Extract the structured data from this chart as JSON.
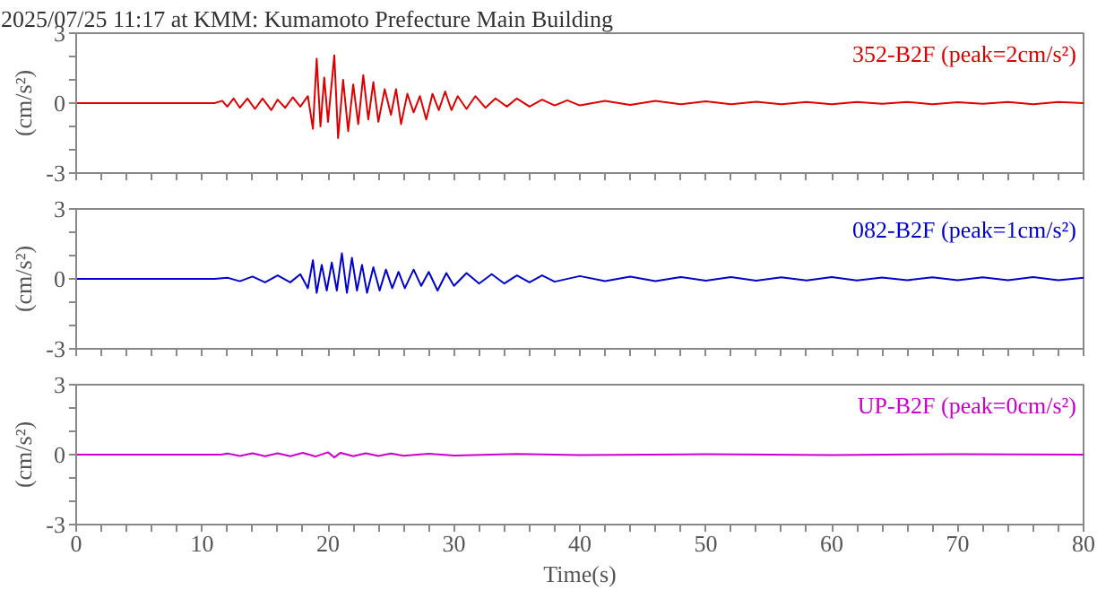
{
  "chart_data": [
    {
      "type": "line",
      "title": "2025/07/25 11:17 at KMM: Kumamoto Prefecture Main Building",
      "ylabel": "(cm/s²)",
      "xlim": [
        0,
        80
      ],
      "ylim": [
        -3,
        3
      ],
      "tick_labels": "y",
      "legend": "top right",
      "xticks": [
        0,
        {
          "value": 2,
          "label": null
        },
        {
          "value": 4,
          "label": null
        },
        {
          "value": 6,
          "label": null
        },
        {
          "value": 8,
          "label": null
        },
        10,
        {
          "value": 12,
          "label": null
        },
        {
          "value": 14,
          "label": null
        },
        {
          "value": 16,
          "label": null
        },
        {
          "value": 18,
          "label": null
        },
        20,
        {
          "value": 22,
          "label": null
        },
        {
          "value": 24,
          "label": null
        },
        {
          "value": 26,
          "label": null
        },
        {
          "value": 28,
          "label": null
        },
        30,
        {
          "value": 32,
          "label": null
        },
        {
          "value": 34,
          "label": null
        },
        {
          "value": 36,
          "label": null
        },
        {
          "value": 38,
          "label": null
        },
        40,
        {
          "value": 42,
          "label": null
        },
        {
          "value": 44,
          "label": null
        },
        {
          "value": 46,
          "label": null
        },
        {
          "value": 48,
          "label": null
        },
        50,
        {
          "value": 52,
          "label": null
        },
        {
          "value": 54,
          "label": null
        },
        {
          "value": 56,
          "label": null
        },
        {
          "value": 58,
          "label": null
        },
        60,
        {
          "value": 62,
          "label": null
        },
        {
          "value": 64,
          "label": null
        },
        {
          "value": 66,
          "label": null
        },
        {
          "value": 68,
          "label": null
        },
        70,
        {
          "value": 72,
          "label": null
        },
        {
          "value": 74,
          "label": null
        },
        {
          "value": 76,
          "label": null
        },
        {
          "value": 78,
          "label": null
        },
        80
      ],
      "yticks": [
        -3,
        {
          "value": -2,
          "label": null
        },
        {
          "value": -1,
          "label": null
        },
        0,
        {
          "value": 1,
          "label": null
        },
        {
          "value": 2,
          "label": null
        },
        3
      ],
      "series": [
        {
          "name": "352-B2F (peak=2cm/s²)",
          "color": "#dd0000",
          "x": [
            0,
            11,
            11.6,
            12,
            12.5,
            13,
            13.6,
            14.2,
            14.8,
            15.5,
            16,
            16.6,
            17.2,
            17.8,
            18.4,
            18.8,
            19.1,
            19.4,
            19.7,
            20.0,
            20.5,
            20.8,
            21.2,
            21.6,
            22.0,
            22.4,
            22.8,
            23.2,
            23.6,
            24.0,
            24.5,
            25,
            25.4,
            25.8,
            26.3,
            26.8,
            27.3,
            27.8,
            28.3,
            28.8,
            29.3,
            29.8,
            30.3,
            31,
            31.7,
            32.5,
            33.3,
            34.2,
            35,
            36,
            37,
            38,
            39,
            40,
            42,
            44,
            46,
            48,
            50,
            52,
            54,
            56,
            58,
            60,
            62,
            64,
            66,
            68,
            70,
            72,
            74,
            76,
            78,
            80
          ],
          "values": [
            0,
            0,
            0.1,
            -0.15,
            0.2,
            -0.2,
            0.2,
            -0.25,
            0.2,
            -0.3,
            0.15,
            -0.2,
            0.25,
            -0.15,
            0.3,
            -1.1,
            1.9,
            -1.0,
            1.1,
            -0.8,
            2.05,
            -1.5,
            1.0,
            -1.2,
            0.8,
            -0.9,
            1.2,
            -0.7,
            0.9,
            -0.8,
            0.6,
            -0.5,
            0.6,
            -0.9,
            0.4,
            -0.4,
            0.3,
            -0.7,
            0.4,
            -0.3,
            0.5,
            -0.3,
            0.3,
            -0.25,
            0.3,
            -0.2,
            0.2,
            -0.15,
            0.2,
            -0.15,
            0.15,
            -0.1,
            0.12,
            -0.1,
            0.1,
            -0.08,
            0.1,
            -0.05,
            0.08,
            -0.05,
            0.06,
            -0.05,
            0.05,
            -0.05,
            0.05,
            -0.03,
            0.05,
            -0.05,
            0.04,
            -0.03,
            0.05,
            -0.05,
            0.05,
            0
          ]
        }
      ]
    },
    {
      "type": "line",
      "ylabel": "(cm/s²)",
      "xlim": [
        0,
        80
      ],
      "ylim": [
        -3,
        3
      ],
      "tick_labels": "y",
      "legend": "top right",
      "xticks": [
        0,
        {
          "value": 2,
          "label": null
        },
        {
          "value": 4,
          "label": null
        },
        {
          "value": 6,
          "label": null
        },
        {
          "value": 8,
          "label": null
        },
        10,
        {
          "value": 12,
          "label": null
        },
        {
          "value": 14,
          "label": null
        },
        {
          "value": 16,
          "label": null
        },
        {
          "value": 18,
          "label": null
        },
        20,
        {
          "value": 22,
          "label": null
        },
        {
          "value": 24,
          "label": null
        },
        {
          "value": 26,
          "label": null
        },
        {
          "value": 28,
          "label": null
        },
        30,
        {
          "value": 32,
          "label": null
        },
        {
          "value": 34,
          "label": null
        },
        {
          "value": 36,
          "label": null
        },
        {
          "value": 38,
          "label": null
        },
        40,
        {
          "value": 42,
          "label": null
        },
        {
          "value": 44,
          "label": null
        },
        {
          "value": 46,
          "label": null
        },
        {
          "value": 48,
          "label": null
        },
        50,
        {
          "value": 52,
          "label": null
        },
        {
          "value": 54,
          "label": null
        },
        {
          "value": 56,
          "label": null
        },
        {
          "value": 58,
          "label": null
        },
        60,
        {
          "value": 62,
          "label": null
        },
        {
          "value": 64,
          "label": null
        },
        {
          "value": 66,
          "label": null
        },
        {
          "value": 68,
          "label": null
        },
        70,
        {
          "value": 72,
          "label": null
        },
        {
          "value": 74,
          "label": null
        },
        {
          "value": 76,
          "label": null
        },
        {
          "value": 78,
          "label": null
        },
        80
      ],
      "yticks": [
        -3,
        {
          "value": -2,
          "label": null
        },
        {
          "value": -1,
          "label": null
        },
        0,
        {
          "value": 1,
          "label": null
        },
        {
          "value": 2,
          "label": null
        },
        3
      ],
      "series": [
        {
          "name": "082-B2F (peak=1cm/s²)",
          "color": "#0000cc",
          "x": [
            0,
            11,
            12,
            13,
            14,
            15,
            16,
            17,
            17.8,
            18.4,
            18.8,
            19.1,
            19.5,
            19.9,
            20.3,
            20.7,
            21.1,
            21.5,
            21.9,
            22.3,
            22.7,
            23.1,
            23.6,
            24.1,
            24.6,
            25.1,
            25.6,
            26.1,
            26.8,
            27.4,
            28,
            28.7,
            29.4,
            30,
            31,
            32,
            33,
            34,
            35,
            36,
            37,
            38,
            40,
            42,
            44,
            46,
            48,
            50,
            52,
            54,
            56,
            58,
            60,
            62,
            64,
            66,
            68,
            70,
            72,
            74,
            76,
            78,
            80
          ],
          "values": [
            0,
            0,
            0.05,
            -0.1,
            0.1,
            -0.15,
            0.15,
            -0.15,
            0.2,
            -0.4,
            0.8,
            -0.6,
            0.6,
            -0.5,
            0.7,
            -0.5,
            1.1,
            -0.6,
            0.9,
            -0.5,
            0.6,
            -0.6,
            0.5,
            -0.5,
            0.4,
            -0.4,
            0.3,
            -0.4,
            0.4,
            -0.3,
            0.3,
            -0.5,
            0.25,
            -0.3,
            0.25,
            -0.2,
            0.2,
            -0.2,
            0.15,
            -0.15,
            0.15,
            -0.12,
            0.12,
            -0.1,
            0.1,
            -0.1,
            0.08,
            -0.08,
            0.08,
            -0.08,
            0.07,
            -0.07,
            0.08,
            -0.07,
            0.06,
            -0.06,
            0.07,
            -0.06,
            0.07,
            -0.06,
            0.08,
            -0.06,
            0.05
          ]
        }
      ]
    },
    {
      "type": "line",
      "ylabel": "(cm/s²)",
      "xlabel": "Time(s)",
      "xlim": [
        0,
        80
      ],
      "ylim": [
        -3,
        3
      ],
      "legend": "top right",
      "xticks": [
        0,
        {
          "value": 2,
          "label": null
        },
        {
          "value": 4,
          "label": null
        },
        {
          "value": 6,
          "label": null
        },
        {
          "value": 8,
          "label": null
        },
        10,
        {
          "value": 12,
          "label": null
        },
        {
          "value": 14,
          "label": null
        },
        {
          "value": 16,
          "label": null
        },
        {
          "value": 18,
          "label": null
        },
        20,
        {
          "value": 22,
          "label": null
        },
        {
          "value": 24,
          "label": null
        },
        {
          "value": 26,
          "label": null
        },
        {
          "value": 28,
          "label": null
        },
        30,
        {
          "value": 32,
          "label": null
        },
        {
          "value": 34,
          "label": null
        },
        {
          "value": 36,
          "label": null
        },
        {
          "value": 38,
          "label": null
        },
        40,
        {
          "value": 42,
          "label": null
        },
        {
          "value": 44,
          "label": null
        },
        {
          "value": 46,
          "label": null
        },
        {
          "value": 48,
          "label": null
        },
        50,
        {
          "value": 52,
          "label": null
        },
        {
          "value": 54,
          "label": null
        },
        {
          "value": 56,
          "label": null
        },
        {
          "value": 58,
          "label": null
        },
        60,
        {
          "value": 62,
          "label": null
        },
        {
          "value": 64,
          "label": null
        },
        {
          "value": 66,
          "label": null
        },
        {
          "value": 68,
          "label": null
        },
        70,
        {
          "value": 72,
          "label": null
        },
        {
          "value": 74,
          "label": null
        },
        {
          "value": 76,
          "label": null
        },
        {
          "value": 78,
          "label": null
        },
        80
      ],
      "yticks": [
        -3,
        {
          "value": -2,
          "label": null
        },
        {
          "value": -1,
          "label": null
        },
        0,
        {
          "value": 1,
          "label": null
        },
        {
          "value": 2,
          "label": null
        },
        3
      ],
      "series": [
        {
          "name": "UP-B2F (peak=0cm/s²)",
          "color": "#cc00cc",
          "x": [
            0,
            11.5,
            12,
            13,
            14,
            15,
            16,
            17,
            18,
            19,
            20,
            20.5,
            21,
            22,
            23,
            24,
            25,
            26,
            28,
            30,
            35,
            40,
            50,
            60,
            70,
            80
          ],
          "values": [
            0,
            0,
            0.05,
            -0.06,
            0.06,
            -0.07,
            0.06,
            -0.07,
            0.08,
            -0.08,
            0.1,
            -0.12,
            0.08,
            -0.07,
            0.06,
            -0.06,
            0.05,
            -0.05,
            0.04,
            -0.04,
            0.03,
            -0.02,
            0.02,
            -0.02,
            0.02,
            0
          ]
        }
      ]
    }
  ]
}
